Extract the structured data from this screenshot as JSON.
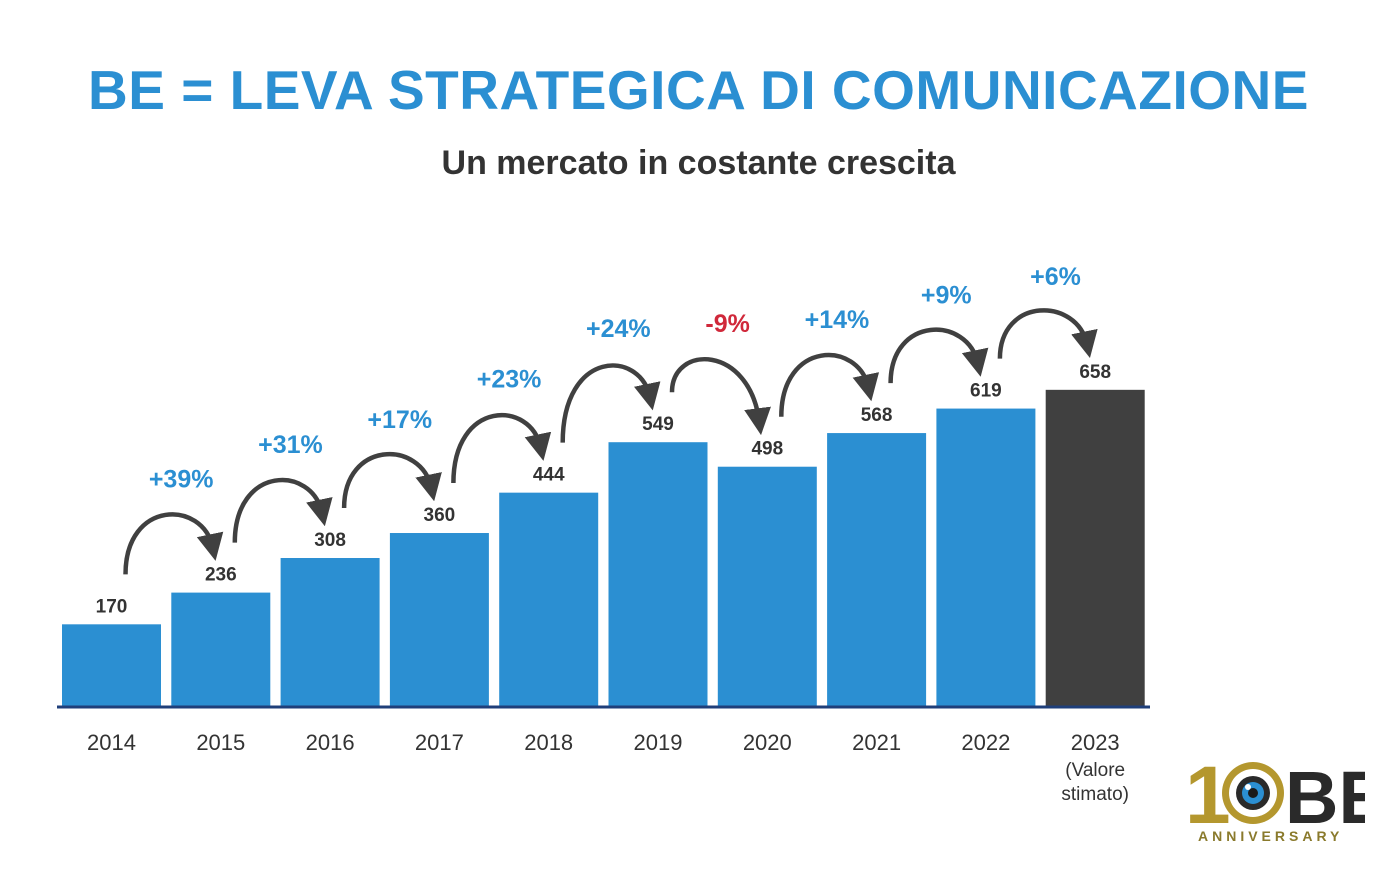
{
  "header": {
    "title": "BE = LEVA STRATEGICA DI COMUNICAZIONE",
    "subtitle": "Un mercato in costante crescita"
  },
  "chart_data": {
    "type": "bar",
    "title": "BE = LEVA STRATEGICA DI COMUNICAZIONE",
    "subtitle": "Un mercato in costante crescita",
    "categories": [
      "2014",
      "2015",
      "2016",
      "2017",
      "2018",
      "2019",
      "2020",
      "2021",
      "2022",
      "2023"
    ],
    "category_notes": [
      "",
      "",
      "",
      "",
      "",
      "",
      "",
      "",
      "",
      "(Valore stimato)"
    ],
    "values": [
      170,
      236,
      308,
      360,
      444,
      549,
      498,
      568,
      619,
      658
    ],
    "growth_labels": [
      "+39%",
      "+31%",
      "+17%",
      "+23%",
      "+24%",
      "-9%",
      "+14%",
      "+9%",
      "+6%"
    ],
    "ylim": [
      0,
      700
    ],
    "xlabel": "",
    "ylabel": "",
    "grid": false,
    "colors": {
      "bar": "#2b8fd2",
      "estimate_bar": "#404040",
      "axis": "#1f3f7a",
      "positive": "#2b8fd2",
      "negative": "#d0283a",
      "arrow": "#404040",
      "value_label": "#333333"
    }
  },
  "logo": {
    "number": "10",
    "brand": "BE",
    "sub": "ANNIVERSARY",
    "colors": {
      "gold": "#b4972e",
      "dark": "#2a2a2a",
      "eye": "#2b8fd2"
    }
  }
}
